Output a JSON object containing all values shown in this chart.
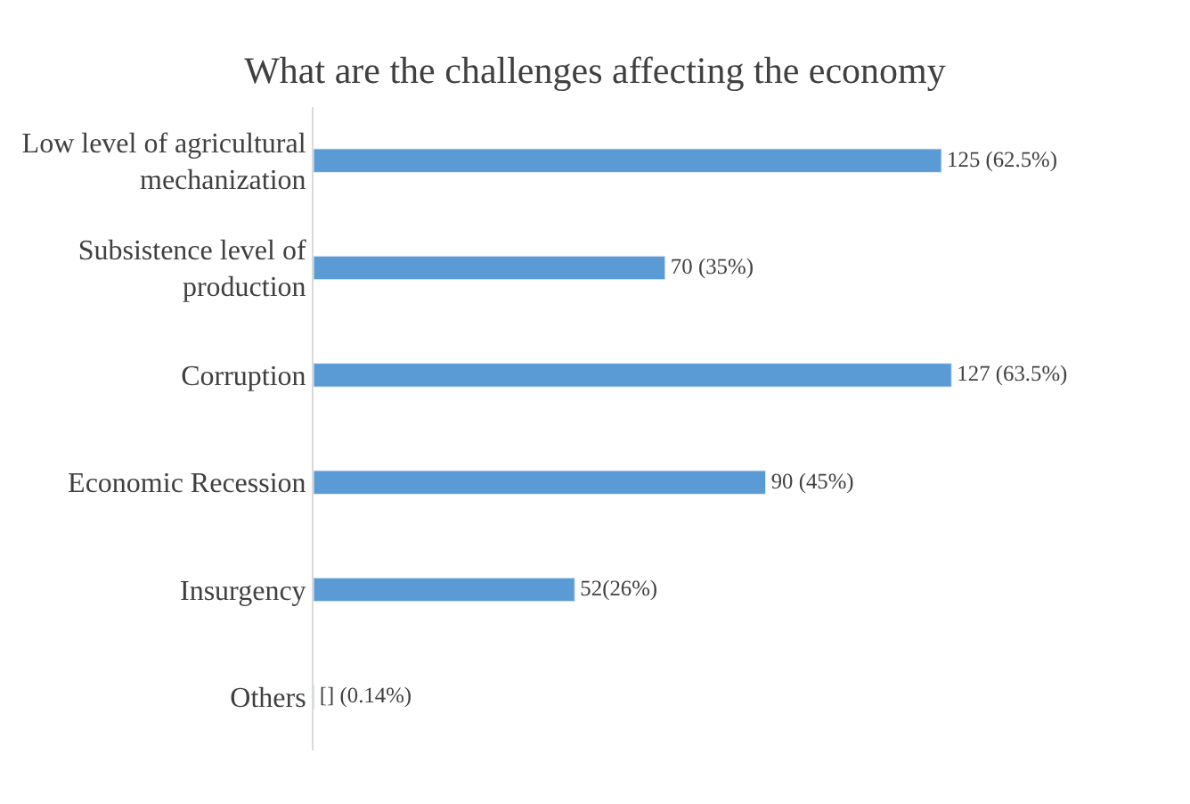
{
  "chart_data": {
    "type": "bar",
    "orientation": "horizontal",
    "title": "What are the challenges affecting the economy",
    "categories": [
      "Low level of agricultural mechanization",
      "Subsistence level of production",
      "Corruption",
      "Economic Recession",
      "Insurgency",
      "Others"
    ],
    "values": [
      125,
      70,
      127,
      90,
      52,
      0.14
    ],
    "value_labels": [
      "125 (62.5%)",
      "70 (35%)",
      "127 (63.5%)",
      "90 (45%)",
      "52(26%)",
      "[] (0.14%)"
    ],
    "color": "#5b9bd5",
    "tick_labels": "y",
    "legend": false
  }
}
